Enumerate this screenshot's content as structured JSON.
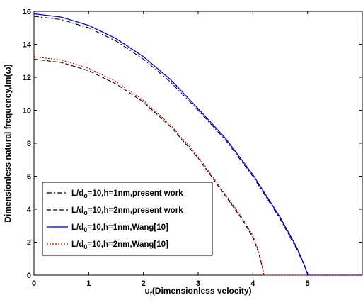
{
  "chart_data": {
    "type": "line",
    "xlabel": "u",
    "xlabel_sub": "f",
    "xlabel_rest": "(Dimensionless velocity)",
    "ylabel": "Dimensionless natural frequency,Im(ω)",
    "xlim": [
      0,
      6
    ],
    "ylim": [
      0,
      16
    ],
    "xticks": [
      0,
      1,
      2,
      3,
      4,
      5
    ],
    "yticks": [
      0,
      2,
      4,
      6,
      8,
      10,
      12,
      14,
      16
    ],
    "grid": false,
    "legend_position": "bottom-left",
    "series": [
      {
        "name_parts": [
          "L/d",
          "o",
          "=10,h=1nm,present work"
        ],
        "color": "#000000",
        "style": "dashdot",
        "x": [
          0,
          0.5,
          1,
          1.5,
          2,
          2.5,
          3,
          3.5,
          4,
          4.5,
          4.8,
          4.95,
          5.0,
          5.0,
          6
        ],
        "y": [
          15.7,
          15.5,
          15.0,
          14.2,
          13.1,
          11.7,
          10.0,
          8.2,
          6.0,
          3.4,
          1.6,
          0.5,
          0.05,
          0,
          0
        ]
      },
      {
        "name_parts": [
          "L/d",
          "o",
          "=10,h=2nm,present work"
        ],
        "color": "#000000",
        "style": "dashed",
        "x": [
          0,
          0.5,
          1,
          1.5,
          2,
          2.5,
          3,
          3.5,
          3.8,
          4.0,
          4.1,
          4.18,
          4.2,
          6
        ],
        "y": [
          13.1,
          12.9,
          12.4,
          11.6,
          10.5,
          9.0,
          7.1,
          4.8,
          3.4,
          2.3,
          1.4,
          0.4,
          0,
          0
        ]
      },
      {
        "name_parts": [
          "L/d",
          "0",
          "=10,h=1nm,Wang[10]"
        ],
        "color": "#0000cc",
        "style": "solid",
        "x": [
          0,
          0.5,
          1,
          1.5,
          2,
          2.5,
          3,
          3.5,
          4,
          4.5,
          4.8,
          4.95,
          5.0,
          5.0,
          6
        ],
        "y": [
          15.85,
          15.65,
          15.15,
          14.35,
          13.25,
          11.85,
          10.1,
          8.3,
          6.1,
          3.5,
          1.7,
          0.55,
          0.05,
          0,
          0
        ]
      },
      {
        "name_parts": [
          "L/d",
          "0",
          "=10,h=2nm,Wang[10]"
        ],
        "color": "#cc0000",
        "style": "dotted",
        "x": [
          0,
          0.5,
          1,
          1.5,
          2,
          2.5,
          3,
          3.5,
          3.8,
          4.0,
          4.1,
          4.18,
          4.2,
          6
        ],
        "y": [
          13.25,
          13.05,
          12.55,
          11.75,
          10.6,
          9.1,
          7.2,
          4.9,
          3.5,
          2.4,
          1.5,
          0.45,
          0,
          0
        ]
      }
    ]
  }
}
